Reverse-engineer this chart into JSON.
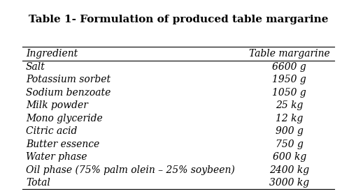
{
  "title": "Table 1- Formulation of produced table margarine",
  "col_headers": [
    "Ingredient",
    "Table margarine"
  ],
  "rows": [
    [
      "Salt",
      "6600 g"
    ],
    [
      "Potassium sorbet",
      "1950 g"
    ],
    [
      "Sodium benzoate",
      "1050 g"
    ],
    [
      "Milk powder",
      "25 kg"
    ],
    [
      "Mono glyceride",
      "12 kg"
    ],
    [
      "Citric acid",
      "900 g"
    ],
    [
      "Butter essence",
      "750 g"
    ],
    [
      "Water phase",
      "600 kg"
    ],
    [
      "Oil phase (75% palm olein – 25% soybeen)",
      "2400 kg"
    ],
    [
      "Total",
      "3000 kg"
    ]
  ],
  "bg_color": "#ffffff",
  "text_color": "#000000",
  "title_fontsize": 11,
  "header_fontsize": 10,
  "row_fontsize": 10,
  "font_family": "serif"
}
